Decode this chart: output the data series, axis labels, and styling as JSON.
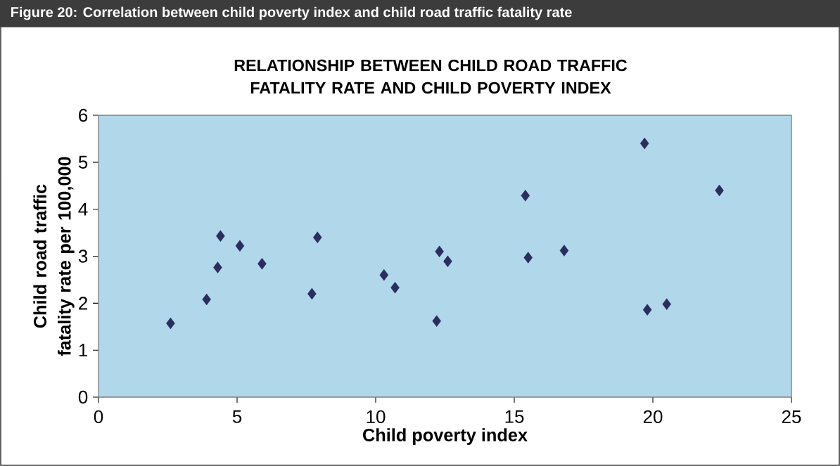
{
  "chart_data": {
    "type": "scatter",
    "title": "RELATIONSHIP BETWEEN CHILD ROAD TRAFFIC FATALITY RATE AND CHILD POVERTY INDEX",
    "xlabel": "Child poverty index",
    "ylabel": "Child road traffic fatality rate per 100,000",
    "annotations": [
      "Figure 20:  Correlation between child poverty index and child road traffic fatality rate"
    ],
    "x": [
      2.6,
      3.9,
      4.3,
      4.4,
      5.1,
      5.9,
      7.7,
      7.9,
      10.3,
      10.7,
      12.2,
      12.3,
      12.6,
      15.4,
      15.5,
      16.8,
      19.7,
      19.8,
      20.5,
      22.4
    ],
    "values": [
      1.57,
      2.08,
      2.76,
      3.43,
      3.22,
      2.84,
      2.2,
      3.4,
      2.6,
      2.33,
      1.62,
      3.1,
      2.89,
      4.29,
      2.97,
      3.12,
      5.4,
      1.86,
      1.98,
      4.4
    ],
    "color": "#2b2d5e",
    "marker": "diamond",
    "xlim": [
      0,
      25
    ],
    "xticks": [
      0,
      5,
      10,
      15,
      20,
      25
    ],
    "ylim": [
      0,
      6
    ],
    "yticks": [
      0,
      1,
      2,
      3,
      4,
      5,
      6
    ],
    "grid": false
  }
}
